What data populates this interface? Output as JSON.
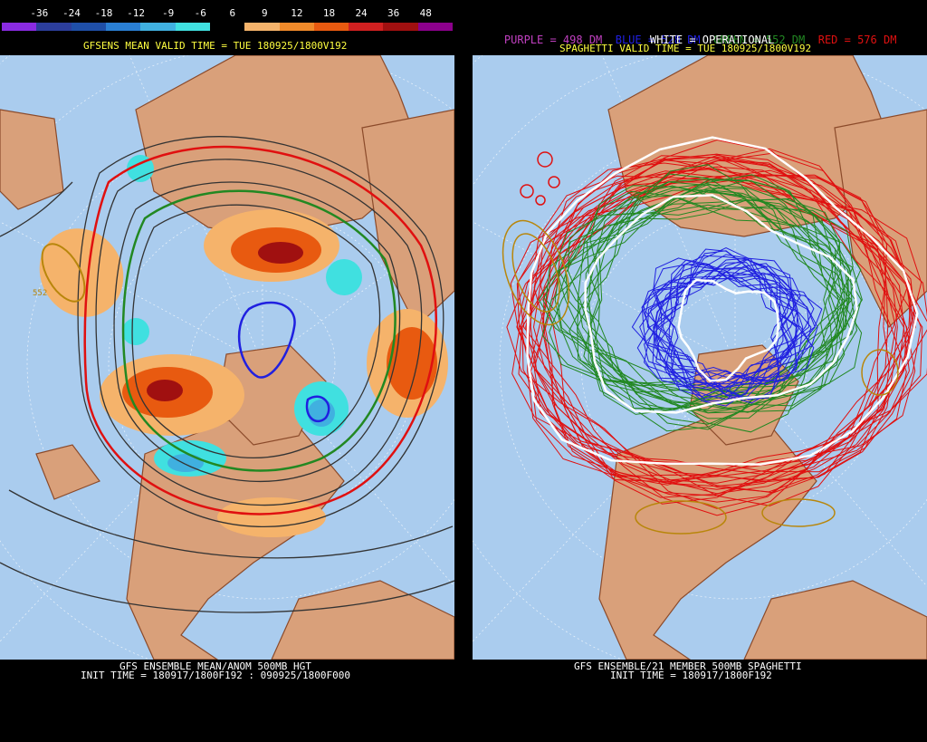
{
  "left_panel": {
    "scale_labels": [
      "-36",
      "-24",
      "-18",
      "-12",
      "-9",
      "-6",
      "6",
      "9",
      "12",
      "18",
      "24",
      "36",
      "48"
    ],
    "scale_colors": [
      "#8a2be2",
      "#2c3e9c",
      "#1f4fa8",
      "#2a7fd4",
      "#40b0e0",
      "#40e0e0",
      "#000000",
      "#f5b36b",
      "#f08a2a",
      "#e85a10",
      "#d02020",
      "#a01010",
      "#8b008b"
    ],
    "valid_time": "GFSENS MEAN VALID TIME = TUE 180925/1800V192",
    "map_label_1": "552",
    "footer_line1": "GFS ENSEMBLE MEAN/ANOM 500MB HGT",
    "footer_line2": "INIT TIME = 180917/1800F192 : 090925/1800F000"
  },
  "right_panel": {
    "legend_purple": "PURPLE = 498 DM",
    "legend_blue": "BLUE = 528 DM",
    "legend_green": "GREEN = 552 DM",
    "legend_red": "RED = 576 DM",
    "legend_white": "WHITE = OPERATIONAL",
    "valid_time": "SPAGHETTI VALID TIME = TUE 180925/1800V192",
    "footer_line1": "GFS ENSEMBLE/21 MEMBER 500MB SPAGHETTI",
    "footer_line2": "INIT TIME = 180917/1800F192"
  },
  "colors": {
    "ocean": "#aaccee",
    "land": "#d9a07a",
    "coast": "#8b4a2a",
    "purple": "#c040c0",
    "blue": "#2020e0",
    "green": "#228822",
    "red": "#e01010",
    "legend_yellow": "#ffff40"
  }
}
